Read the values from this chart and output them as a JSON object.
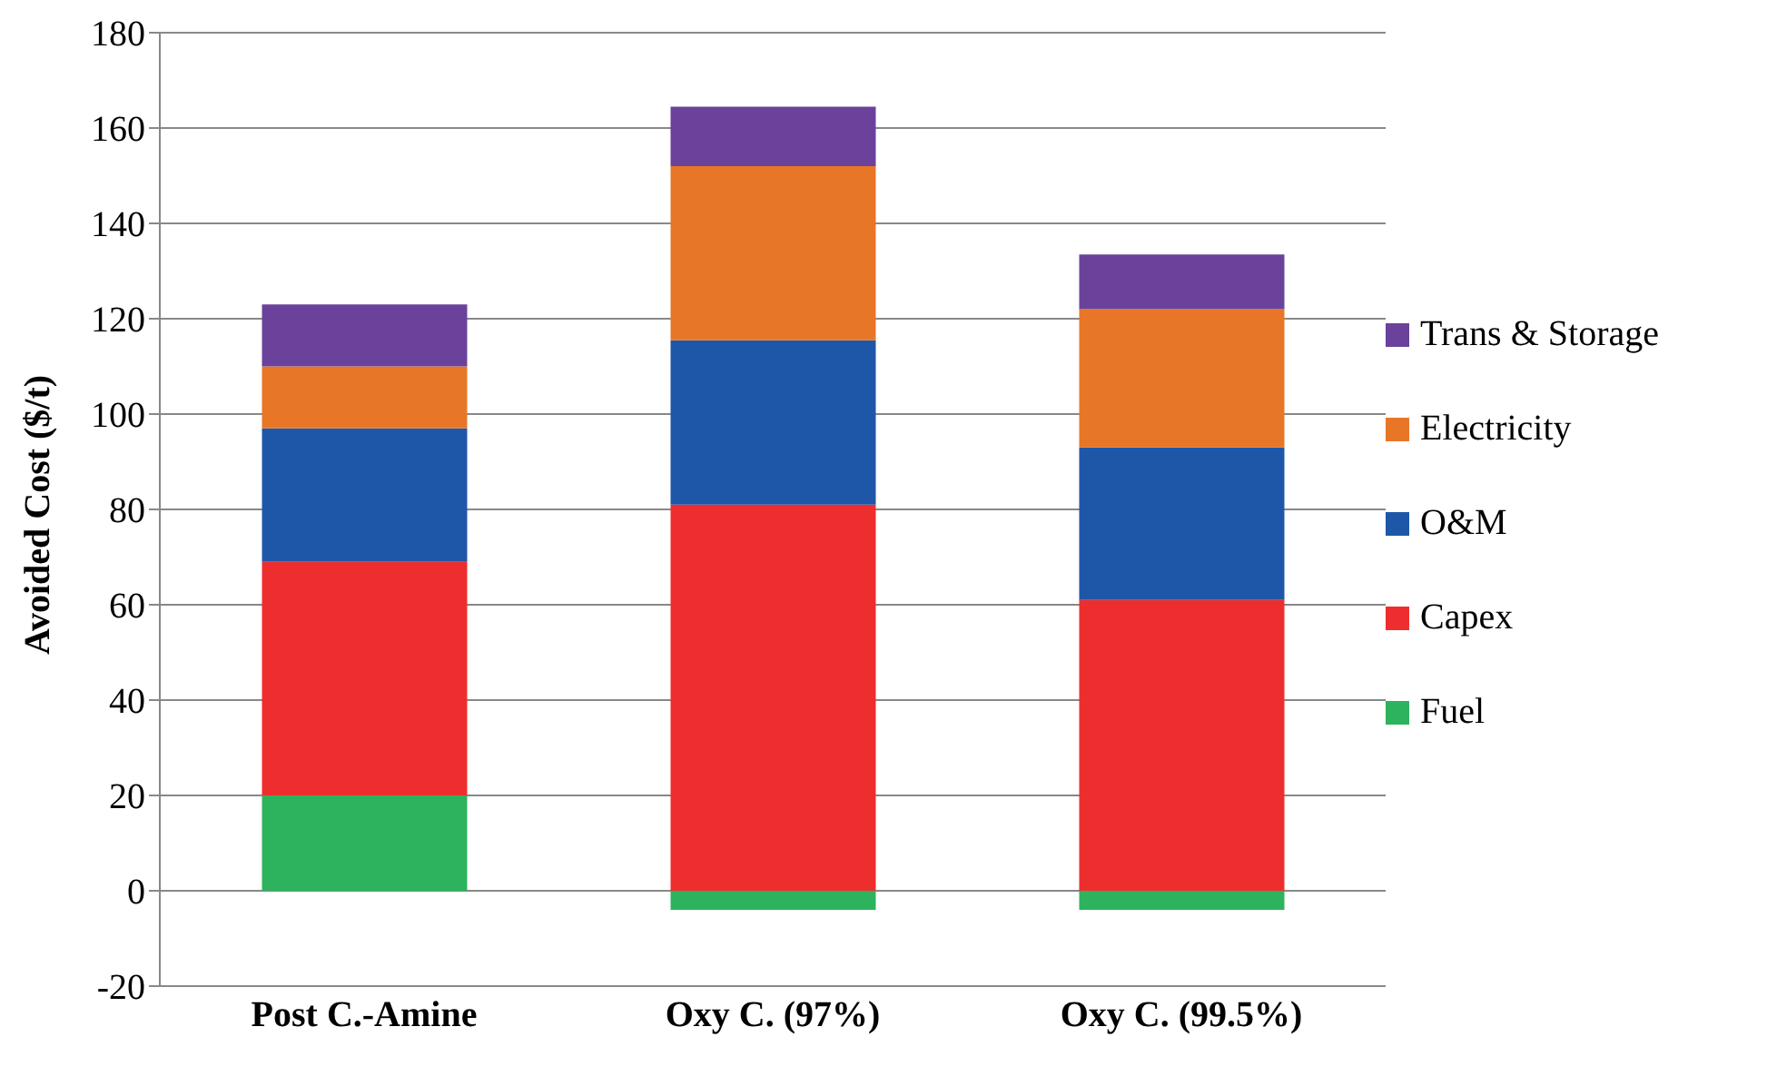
{
  "chart_data": {
    "type": "bar",
    "stacked": true,
    "ylabel": "Avoided Cost ($/t)",
    "categories": [
      "Post C.-Amine",
      "Oxy C. (97%)",
      "Oxy C. (99.5%)"
    ],
    "series": [
      {
        "name": "Fuel",
        "color": "#2db35d",
        "values": [
          20,
          -4,
          -4
        ]
      },
      {
        "name": "Capex",
        "color": "#ee2e2e",
        "values": [
          49,
          81,
          61
        ]
      },
      {
        "name": "O&M",
        "color": "#1f57a8",
        "values": [
          28,
          34.5,
          32
        ]
      },
      {
        "name": "Electricity",
        "color": "#e87627",
        "values": [
          13,
          36.5,
          29
        ]
      },
      {
        "name": "Trans & Storage",
        "color": "#6a429b",
        "values": [
          13,
          12.5,
          11.5
        ]
      }
    ],
    "ylim": [
      -20,
      180
    ],
    "yticks": [
      -20,
      0,
      20,
      40,
      60,
      80,
      100,
      120,
      140,
      160,
      180
    ],
    "grid": "y",
    "legend": "right"
  }
}
